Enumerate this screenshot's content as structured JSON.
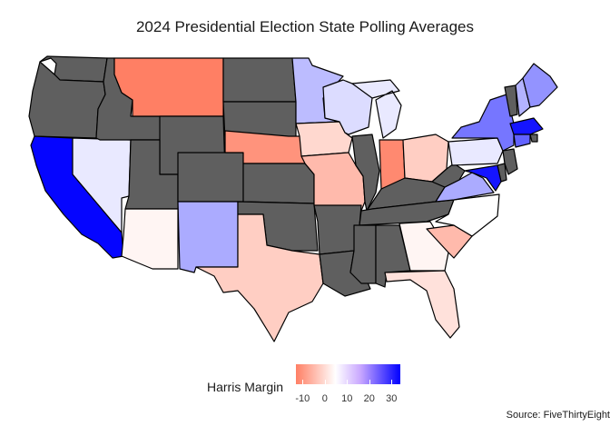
{
  "title": "2024 Presidential Election State Polling Averages",
  "source": "Source: FiveThirtyEight",
  "legend": {
    "title": "Harris Margin",
    "ticks": [
      "-10",
      "0",
      "10",
      "20",
      "30"
    ],
    "tick_values": [
      -10,
      0,
      10,
      20,
      30
    ],
    "range": [
      -13,
      34
    ],
    "colors": {
      "low": "#ff7f64",
      "mid": "#ffffff",
      "high": "#0000ff",
      "no_data": "#5f5f5f"
    }
  },
  "states": [
    {
      "id": "WA",
      "margin": null
    },
    {
      "id": "OR",
      "margin": null
    },
    {
      "id": "CA",
      "margin": 33
    },
    {
      "id": "NV",
      "margin": 1
    },
    {
      "id": "ID",
      "margin": null
    },
    {
      "id": "MT",
      "margin": -13
    },
    {
      "id": "WY",
      "margin": null
    },
    {
      "id": "UT",
      "margin": null
    },
    {
      "id": "AZ",
      "margin": -1
    },
    {
      "id": "CO",
      "margin": null
    },
    {
      "id": "NM",
      "margin": 7
    },
    {
      "id": "ND",
      "margin": null
    },
    {
      "id": "SD",
      "margin": null
    },
    {
      "id": "NE",
      "margin": -11
    },
    {
      "id": "KS",
      "margin": null
    },
    {
      "id": "OK",
      "margin": null
    },
    {
      "id": "TX",
      "margin": -5
    },
    {
      "id": "MN",
      "margin": 5
    },
    {
      "id": "IA",
      "margin": -4
    },
    {
      "id": "MO",
      "margin": -7
    },
    {
      "id": "AR",
      "margin": null
    },
    {
      "id": "LA",
      "margin": null
    },
    {
      "id": "WI",
      "margin": 2
    },
    {
      "id": "IL",
      "margin": null
    },
    {
      "id": "MI",
      "margin": 1
    },
    {
      "id": "IN",
      "margin": -12
    },
    {
      "id": "OH",
      "margin": -5
    },
    {
      "id": "KY",
      "margin": null
    },
    {
      "id": "TN",
      "margin": null
    },
    {
      "id": "MS",
      "margin": null
    },
    {
      "id": "AL",
      "margin": null
    },
    {
      "id": "GA",
      "margin": -1
    },
    {
      "id": "FL",
      "margin": -3
    },
    {
      "id": "SC",
      "margin": -7
    },
    {
      "id": "NC",
      "margin": 0
    },
    {
      "id": "VA",
      "margin": 7
    },
    {
      "id": "WV",
      "margin": null
    },
    {
      "id": "PA",
      "margin": 1
    },
    {
      "id": "NY",
      "margin": 14
    },
    {
      "id": "VT",
      "margin": null
    },
    {
      "id": "NH",
      "margin": 6
    },
    {
      "id": "ME",
      "margin": 10
    },
    {
      "id": "MA",
      "margin": 30
    },
    {
      "id": "RI",
      "margin": null
    },
    {
      "id": "CT",
      "margin": 17
    },
    {
      "id": "NJ",
      "margin": null
    },
    {
      "id": "DE",
      "margin": null
    },
    {
      "id": "MD",
      "margin": 30
    }
  ]
}
